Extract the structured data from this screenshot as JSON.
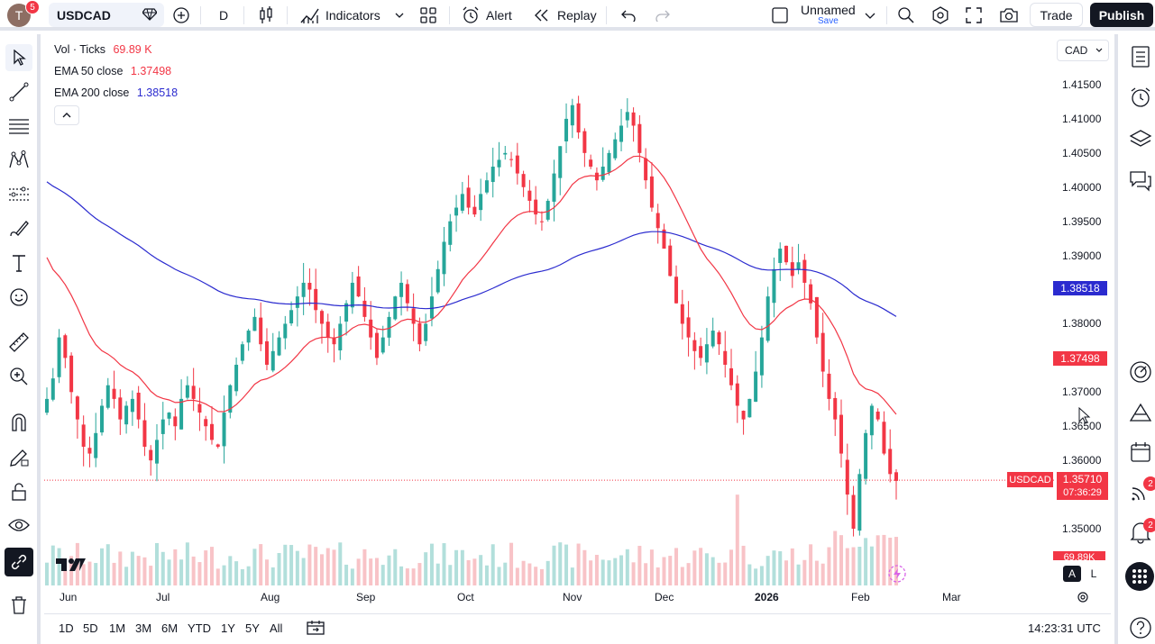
{
  "topbar": {
    "avatar_letter": "T",
    "avatar_badge": "5",
    "symbol": "USDCAD",
    "interval": "D",
    "indicators_label": "Indicators",
    "alert_label": "Alert",
    "replay_label": "Replay",
    "layout_name": "Unnamed",
    "layout_save": "Save",
    "trade_label": "Trade",
    "publish_label": "Publish"
  },
  "legend": {
    "vol_label": "Vol · Ticks",
    "vol_value": "69.89 K",
    "ema50_label": "EMA 50 close",
    "ema50_value": "1.37498",
    "ema200_label": "EMA 200 close",
    "ema200_value": "1.38518"
  },
  "colors": {
    "up": "#26a69a",
    "down": "#f23645",
    "ema50": "#f23645",
    "ema200": "#2b2bcf",
    "vol_up": "#b2dfdb",
    "vol_down": "#f8c3c7"
  },
  "price_axis": {
    "currency": "CAD",
    "ticks": [
      "1.41500",
      "1.41000",
      "1.40500",
      "1.40000",
      "1.39500",
      "1.39000",
      "1.38000",
      "1.37000",
      "1.36500",
      "1.36000",
      "1.35000"
    ],
    "ema200_tag": "1.38518",
    "ema50_tag": "1.37498",
    "last_symbol": "USDCAD",
    "last_price": "1.35710",
    "countdown": "07:36:29",
    "vol_tag_partial": "69.89K"
  },
  "time_axis": {
    "labels": [
      "Jun",
      "Jul",
      "Aug",
      "Sep",
      "Oct",
      "Nov",
      "Dec",
      "2026",
      "Feb",
      "Mar"
    ]
  },
  "bottombar": {
    "ranges": [
      "1D",
      "5D",
      "1M",
      "3M",
      "6M",
      "YTD",
      "1Y",
      "5Y",
      "All"
    ],
    "clock": "14:23:31 UTC",
    "auto_label": "A",
    "log_label": "L"
  },
  "righttb": {
    "badge_a": "2",
    "badge_b": "2"
  },
  "chart_data": {
    "type": "candlestick",
    "symbol": "USDCAD",
    "interval": "1D",
    "ylim": [
      1.344,
      1.4185
    ],
    "months": [
      "Jun",
      "Jul",
      "Aug",
      "Sep",
      "Oct",
      "Nov",
      "Dec",
      "2026",
      "Feb",
      "Mar"
    ],
    "close_path_approx": [
      1.369,
      1.372,
      1.378,
      1.375,
      1.37,
      1.366,
      1.362,
      1.361,
      1.364,
      1.368,
      1.371,
      1.369,
      1.366,
      1.368,
      1.369,
      1.366,
      1.362,
      1.36,
      1.363,
      1.366,
      1.367,
      1.365,
      1.369,
      1.371,
      1.369,
      1.367,
      1.365,
      1.363,
      1.362,
      1.367,
      1.371,
      1.374,
      1.377,
      1.379,
      1.381,
      1.377,
      1.374,
      1.376,
      1.378,
      1.38,
      1.382,
      1.384,
      1.386,
      1.385,
      1.382,
      1.38,
      1.378,
      1.377,
      1.38,
      1.383,
      1.386,
      1.384,
      1.381,
      1.378,
      1.375,
      1.378,
      1.381,
      1.384,
      1.386,
      1.383,
      1.38,
      1.377,
      1.38,
      1.384,
      1.388,
      1.392,
      1.395,
      1.397,
      1.399,
      1.397,
      1.396,
      1.399,
      1.401,
      1.403,
      1.404,
      1.405,
      1.404,
      1.402,
      1.4,
      1.398,
      1.396,
      1.395,
      1.398,
      1.402,
      1.406,
      1.41,
      1.412,
      1.408,
      1.405,
      1.403,
      1.401,
      1.403,
      1.405,
      1.407,
      1.409,
      1.411,
      1.409,
      1.405,
      1.401,
      1.397,
      1.394,
      1.391,
      1.387,
      1.383,
      1.38,
      1.378,
      1.376,
      1.375,
      1.377,
      1.379,
      1.377,
      1.374,
      1.371,
      1.368,
      1.366,
      1.369,
      1.373,
      1.378,
      1.384,
      1.388,
      1.391,
      1.389,
      1.387,
      1.389,
      1.386,
      1.383,
      1.378,
      1.373,
      1.369,
      1.366,
      1.361,
      1.355,
      1.35,
      1.358,
      1.364,
      1.368,
      1.366,
      1.361,
      1.358,
      1.357
    ],
    "ema50": {
      "name": "EMA 50 close",
      "last": 1.37498
    },
    "ema200": {
      "name": "EMA 200 close",
      "last": 1.38518
    },
    "last_price": 1.3571,
    "volume_last": "69.89K"
  }
}
